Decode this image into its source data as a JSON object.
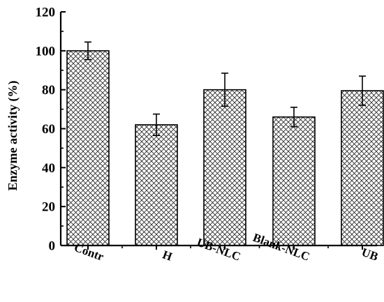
{
  "chart_data": {
    "type": "bar",
    "title": "",
    "xlabel": "",
    "ylabel": "Enzyme activity (%)",
    "categories": [
      "Contr",
      "H",
      "UB-NLC",
      "Blank-NLC",
      "UB"
    ],
    "values": [
      100,
      62,
      80,
      66,
      79.5
    ],
    "errors": [
      4.5,
      5.5,
      8.5,
      5,
      7.5
    ],
    "ylim": [
      0,
      120
    ],
    "yticks": [
      0,
      20,
      40,
      60,
      80,
      100,
      120
    ],
    "yticks_labels": [
      "0",
      "20",
      "40",
      "60",
      "80",
      "100",
      "120"
    ],
    "grid": false,
    "bar_fill": "crosshatch",
    "bar_color": "#000000"
  }
}
